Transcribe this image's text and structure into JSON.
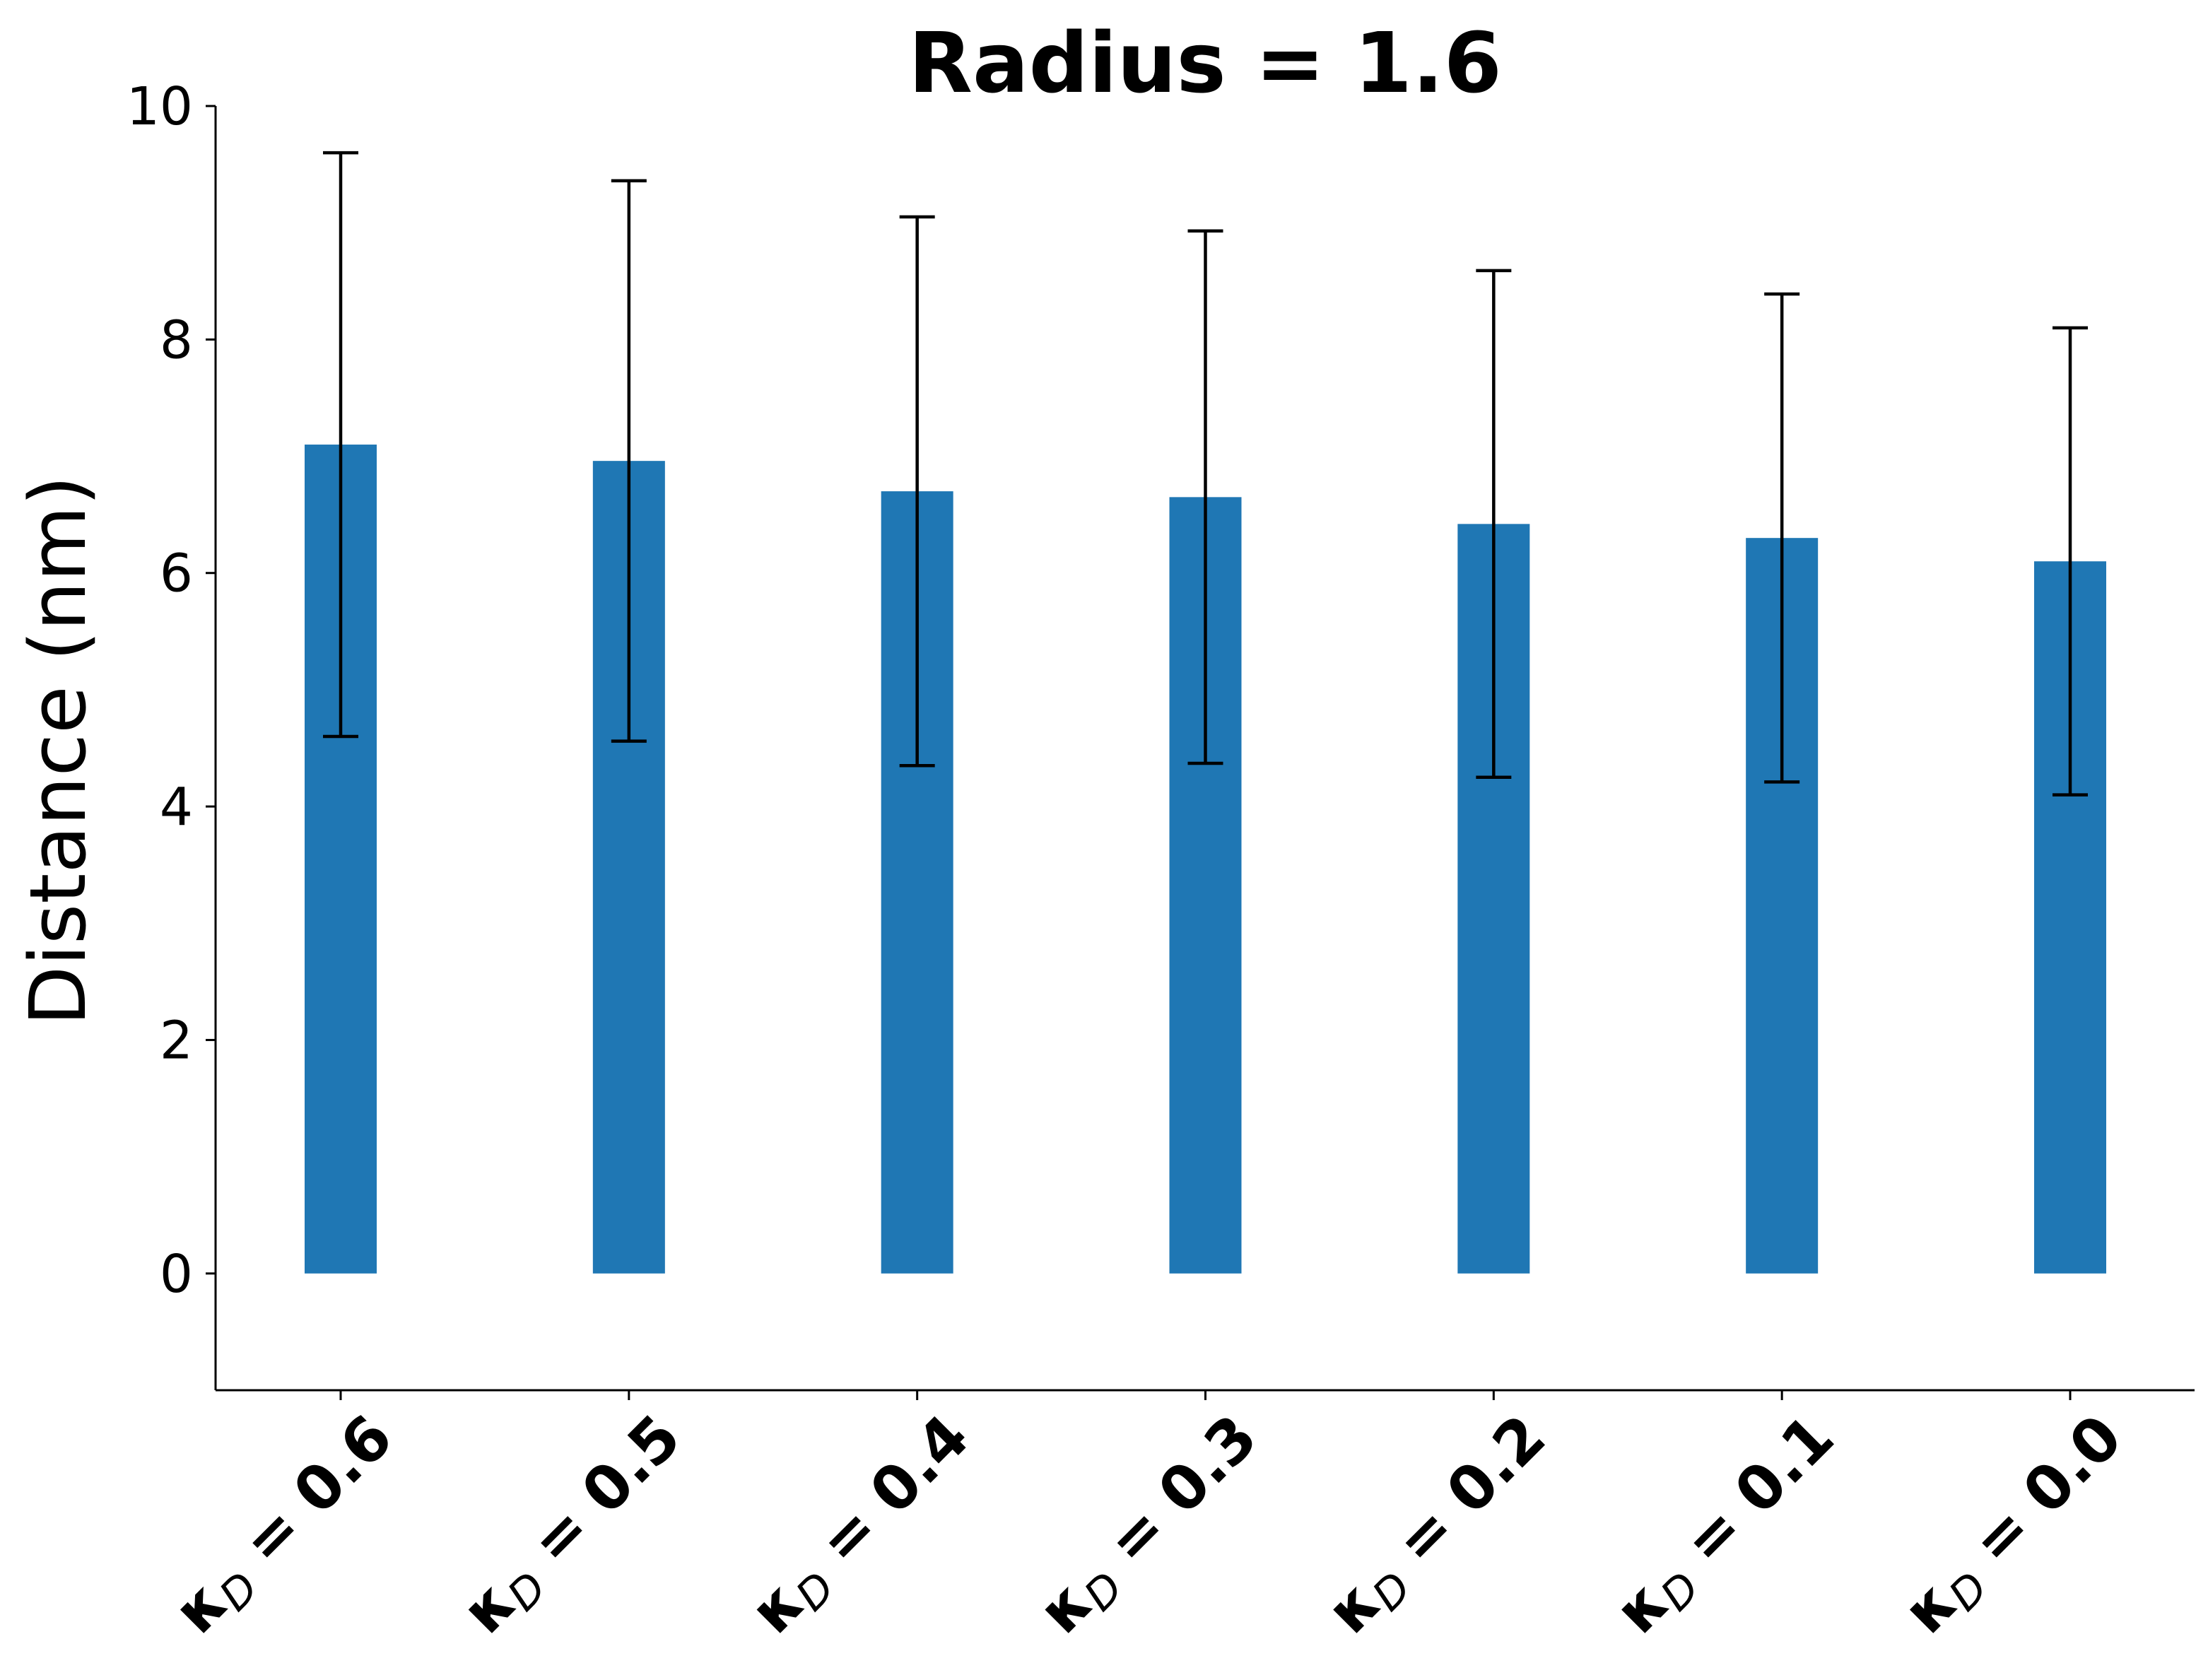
{
  "chart_data": {
    "type": "bar",
    "title": "Radius = 1.6",
    "xlabel": "",
    "ylabel": "Distance (nm)",
    "ylim": [
      -1,
      10
    ],
    "yticks": [
      0,
      2,
      4,
      6,
      8,
      10
    ],
    "grid": false,
    "categories": [
      {
        "main": "κ",
        "sub": "D",
        "rest": " = 0.6"
      },
      {
        "main": "κ",
        "sub": "D",
        "rest": " = 0.5"
      },
      {
        "main": "κ",
        "sub": "D",
        "rest": " = 0.4"
      },
      {
        "main": "κ",
        "sub": "D",
        "rest": " = 0.3"
      },
      {
        "main": "κ",
        "sub": "D",
        "rest": " = 0.2"
      },
      {
        "main": "κ",
        "sub": "D",
        "rest": " = 0.1"
      },
      {
        "main": "κ",
        "sub": "D",
        "rest": " = 0.0"
      }
    ],
    "values": [
      7.1,
      6.96,
      6.7,
      6.65,
      6.42,
      6.3,
      6.1
    ],
    "errors": [
      2.5,
      2.4,
      2.35,
      2.28,
      2.17,
      2.09,
      2.0
    ],
    "bar_color": "#1f77b4",
    "error_color": "#000000"
  }
}
